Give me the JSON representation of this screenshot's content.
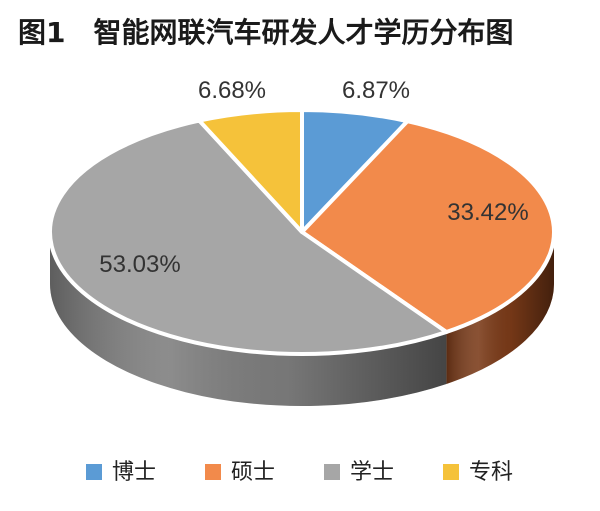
{
  "chart_data": {
    "type": "pie",
    "title": "图1　智能网联汽车研发人才学历分布图",
    "categories": [
      "博士",
      "硕士",
      "学士",
      "专科"
    ],
    "values": [
      6.87,
      33.42,
      53.03,
      6.68
    ],
    "value_labels": [
      "6.87%",
      "33.42%",
      "53.03%",
      "6.68%"
    ],
    "colors": [
      "#5b9bd5",
      "#f28a4b",
      "#a6a6a6",
      "#f5c23a"
    ],
    "side_colors": [
      "#3f6f99",
      "#7a3a18",
      "#7d7d7d",
      "#a8821f"
    ],
    "legend_position": "bottom",
    "style": "3d"
  }
}
